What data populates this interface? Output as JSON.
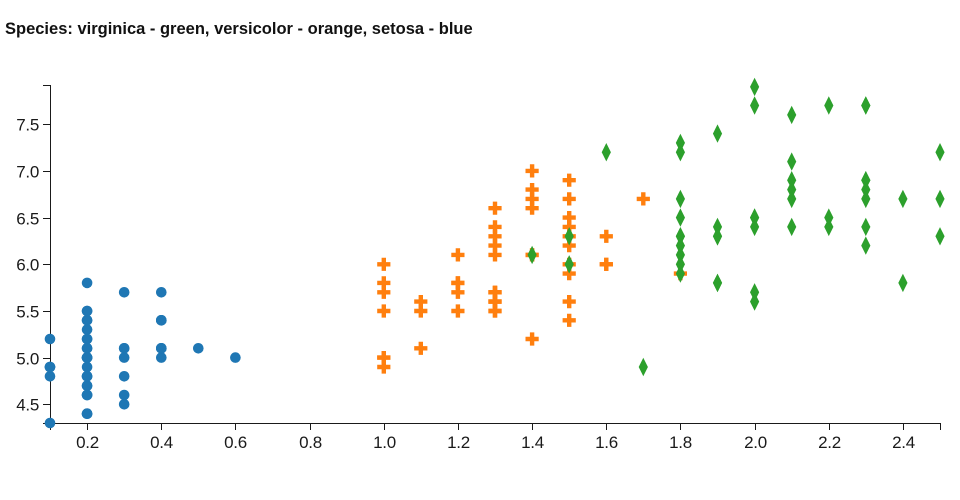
{
  "title": "Species: virginica - green, versicolor - orange, setosa - blue",
  "chart_data": {
    "type": "scatter",
    "title": "Species: virginica - green, versicolor - orange, setosa - blue",
    "xlabel": "",
    "ylabel": "",
    "xlim": [
      0.1,
      2.5
    ],
    "ylim": [
      4.3,
      7.92
    ],
    "x_ticks": [
      0.2,
      0.4,
      0.6,
      0.8,
      1.0,
      1.2,
      1.4,
      1.6,
      1.8,
      2.0,
      2.2,
      2.4
    ],
    "y_ticks": [
      4.5,
      5.0,
      5.5,
      6.0,
      6.5,
      7.0,
      7.5
    ],
    "tick_format_decimals": 1,
    "grid": false,
    "legend_position": "encoded-in-title",
    "axis_color": "#1a1a1a",
    "background_color": "#ffffff",
    "series": [
      {
        "name": "setosa",
        "legend_label": "setosa - blue",
        "color": "#1f77b4",
        "marker": "circle",
        "points": [
          [
            0.2,
            5.1
          ],
          [
            0.2,
            4.9
          ],
          [
            0.2,
            4.7
          ],
          [
            0.2,
            4.6
          ],
          [
            0.2,
            5.0
          ],
          [
            0.4,
            5.4
          ],
          [
            0.3,
            4.6
          ],
          [
            0.2,
            5.0
          ],
          [
            0.2,
            4.4
          ],
          [
            0.1,
            4.9
          ],
          [
            0.2,
            5.4
          ],
          [
            0.2,
            4.8
          ],
          [
            0.1,
            4.8
          ],
          [
            0.1,
            4.3
          ],
          [
            0.2,
            5.8
          ],
          [
            0.4,
            5.7
          ],
          [
            0.4,
            5.4
          ],
          [
            0.3,
            5.1
          ],
          [
            0.3,
            5.7
          ],
          [
            0.3,
            5.1
          ],
          [
            0.2,
            5.4
          ],
          [
            0.4,
            5.1
          ],
          [
            0.2,
            4.6
          ],
          [
            0.5,
            5.1
          ],
          [
            0.2,
            4.8
          ],
          [
            0.2,
            5.0
          ],
          [
            0.4,
            5.0
          ],
          [
            0.2,
            5.2
          ],
          [
            0.2,
            5.2
          ],
          [
            0.2,
            4.7
          ],
          [
            0.2,
            4.8
          ],
          [
            0.4,
            5.4
          ],
          [
            0.1,
            5.2
          ],
          [
            0.2,
            5.5
          ],
          [
            0.1,
            4.9
          ],
          [
            0.2,
            5.0
          ],
          [
            0.2,
            5.5
          ],
          [
            0.1,
            4.9
          ],
          [
            0.2,
            4.4
          ],
          [
            0.4,
            5.1
          ],
          [
            0.3,
            5.0
          ],
          [
            0.3,
            4.5
          ],
          [
            0.2,
            4.4
          ],
          [
            0.6,
            5.0
          ],
          [
            0.4,
            5.1
          ],
          [
            0.3,
            4.8
          ],
          [
            0.2,
            5.1
          ],
          [
            0.2,
            4.6
          ],
          [
            0.2,
            5.3
          ],
          [
            0.2,
            5.0
          ]
        ]
      },
      {
        "name": "versicolor",
        "legend_label": "versicolor - orange",
        "color": "#ff7f0e",
        "marker": "plus",
        "points": [
          [
            1.4,
            7.0
          ],
          [
            1.5,
            6.4
          ],
          [
            1.5,
            6.9
          ],
          [
            1.3,
            5.5
          ],
          [
            1.5,
            6.5
          ],
          [
            1.3,
            5.7
          ],
          [
            1.6,
            6.3
          ],
          [
            1.0,
            4.9
          ],
          [
            1.3,
            6.6
          ],
          [
            1.4,
            5.2
          ],
          [
            1.0,
            5.0
          ],
          [
            1.5,
            5.9
          ],
          [
            1.0,
            6.0
          ],
          [
            1.4,
            6.1
          ],
          [
            1.3,
            5.6
          ],
          [
            1.4,
            6.7
          ],
          [
            1.5,
            5.6
          ],
          [
            1.0,
            5.8
          ],
          [
            1.5,
            6.2
          ],
          [
            1.1,
            5.6
          ],
          [
            1.8,
            5.9
          ],
          [
            1.3,
            6.1
          ],
          [
            1.5,
            6.3
          ],
          [
            1.2,
            6.1
          ],
          [
            1.3,
            6.4
          ],
          [
            1.4,
            6.6
          ],
          [
            1.4,
            6.8
          ],
          [
            1.7,
            6.7
          ],
          [
            1.5,
            6.0
          ],
          [
            1.0,
            5.7
          ],
          [
            1.1,
            5.5
          ],
          [
            1.0,
            5.5
          ],
          [
            1.2,
            5.8
          ],
          [
            1.6,
            6.0
          ],
          [
            1.5,
            5.4
          ],
          [
            1.6,
            6.0
          ],
          [
            1.5,
            6.7
          ],
          [
            1.3,
            6.3
          ],
          [
            1.3,
            5.6
          ],
          [
            1.3,
            5.5
          ],
          [
            1.2,
            5.5
          ],
          [
            1.4,
            6.1
          ],
          [
            1.2,
            5.8
          ],
          [
            1.0,
            5.0
          ],
          [
            1.3,
            5.6
          ],
          [
            1.2,
            5.7
          ],
          [
            1.3,
            5.7
          ],
          [
            1.3,
            6.2
          ],
          [
            1.1,
            5.1
          ],
          [
            1.3,
            5.7
          ]
        ]
      },
      {
        "name": "virginica",
        "legend_label": "virginica - green",
        "color": "#2ca02c",
        "marker": "thin-diamond",
        "points": [
          [
            2.5,
            6.3
          ],
          [
            1.9,
            5.8
          ],
          [
            2.1,
            7.1
          ],
          [
            1.8,
            6.3
          ],
          [
            2.2,
            6.5
          ],
          [
            2.1,
            7.6
          ],
          [
            1.7,
            4.9
          ],
          [
            1.8,
            7.3
          ],
          [
            1.8,
            6.7
          ],
          [
            2.5,
            7.2
          ],
          [
            2.0,
            6.5
          ],
          [
            1.9,
            6.4
          ],
          [
            2.1,
            6.8
          ],
          [
            2.0,
            5.7
          ],
          [
            2.4,
            5.8
          ],
          [
            2.3,
            6.4
          ],
          [
            1.8,
            6.5
          ],
          [
            2.2,
            7.7
          ],
          [
            2.3,
            7.7
          ],
          [
            1.5,
            6.0
          ],
          [
            2.3,
            6.9
          ],
          [
            2.0,
            5.6
          ],
          [
            2.0,
            7.7
          ],
          [
            1.8,
            6.3
          ],
          [
            2.1,
            6.7
          ],
          [
            1.8,
            7.2
          ],
          [
            1.8,
            6.2
          ],
          [
            1.8,
            6.1
          ],
          [
            2.1,
            6.4
          ],
          [
            1.6,
            7.2
          ],
          [
            1.9,
            7.4
          ],
          [
            2.0,
            7.9
          ],
          [
            2.2,
            6.4
          ],
          [
            1.5,
            6.3
          ],
          [
            1.4,
            6.1
          ],
          [
            2.3,
            7.7
          ],
          [
            1.9,
            6.3
          ],
          [
            2.0,
            6.4
          ],
          [
            1.8,
            6.0
          ],
          [
            2.1,
            6.9
          ],
          [
            2.4,
            6.7
          ],
          [
            2.3,
            6.9
          ],
          [
            1.9,
            5.8
          ],
          [
            2.3,
            6.8
          ],
          [
            2.5,
            6.7
          ],
          [
            2.3,
            6.7
          ],
          [
            1.9,
            6.3
          ],
          [
            2.0,
            6.5
          ],
          [
            2.3,
            6.2
          ],
          [
            1.8,
            5.9
          ]
        ]
      }
    ]
  }
}
